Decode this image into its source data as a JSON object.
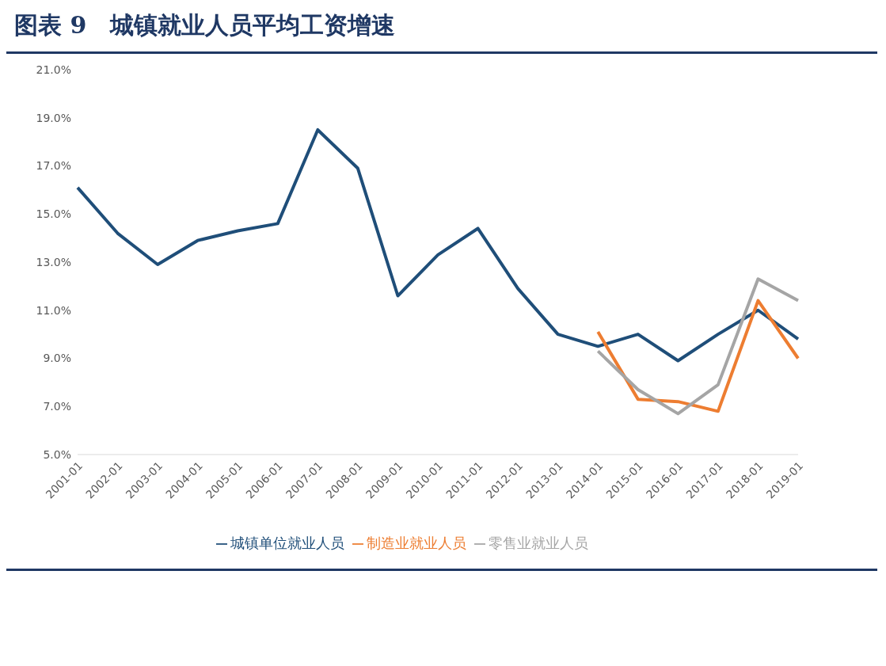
{
  "chart_data": {
    "type": "line",
    "title": "图表 9　城镇就业人员平均工资增速",
    "categories": [
      "2001-01",
      "2002-01",
      "2003-01",
      "2004-01",
      "2005-01",
      "2006-01",
      "2007-01",
      "2008-01",
      "2009-01",
      "2010-01",
      "2011-01",
      "2012-01",
      "2013-01",
      "2014-01",
      "2015-01",
      "2016-01",
      "2017-01",
      "2018-01",
      "2019-01"
    ],
    "series": [
      {
        "name": "城镇单位就业人员",
        "color": "#1f4e79",
        "values": [
          16.1,
          14.2,
          12.9,
          13.9,
          14.3,
          14.6,
          18.5,
          16.9,
          11.6,
          13.3,
          14.4,
          11.9,
          10.0,
          9.5,
          10.0,
          8.9,
          10.0,
          11.0,
          9.8
        ]
      },
      {
        "name": "制造业就业人员",
        "color": "#ed7d31",
        "values": [
          null,
          null,
          null,
          null,
          null,
          null,
          null,
          null,
          null,
          null,
          null,
          null,
          null,
          10.1,
          7.3,
          7.2,
          6.8,
          11.4,
          9.0
        ]
      },
      {
        "name": "零售业就业人员",
        "color": "#a5a5a5",
        "values": [
          null,
          null,
          null,
          null,
          null,
          null,
          null,
          null,
          null,
          null,
          null,
          null,
          null,
          9.3,
          7.7,
          6.7,
          7.9,
          12.3,
          11.4
        ]
      }
    ],
    "ylim": [
      5,
      21
    ],
    "yticks": [
      {
        "value": 5,
        "label": "5.0%"
      },
      {
        "value": 7,
        "label": "7.0%"
      },
      {
        "value": 9,
        "label": "9.0%"
      },
      {
        "value": 11,
        "label": "11.0%"
      },
      {
        "value": 13,
        "label": "13.0%"
      },
      {
        "value": 15,
        "label": "15.0%"
      },
      {
        "value": 17,
        "label": "17.0%"
      },
      {
        "value": 19,
        "label": "19.0%"
      },
      {
        "value": 21,
        "label": "21.0%"
      }
    ],
    "grid": false,
    "legend": "bottom",
    "marker": "none",
    "line_style": "solid"
  }
}
